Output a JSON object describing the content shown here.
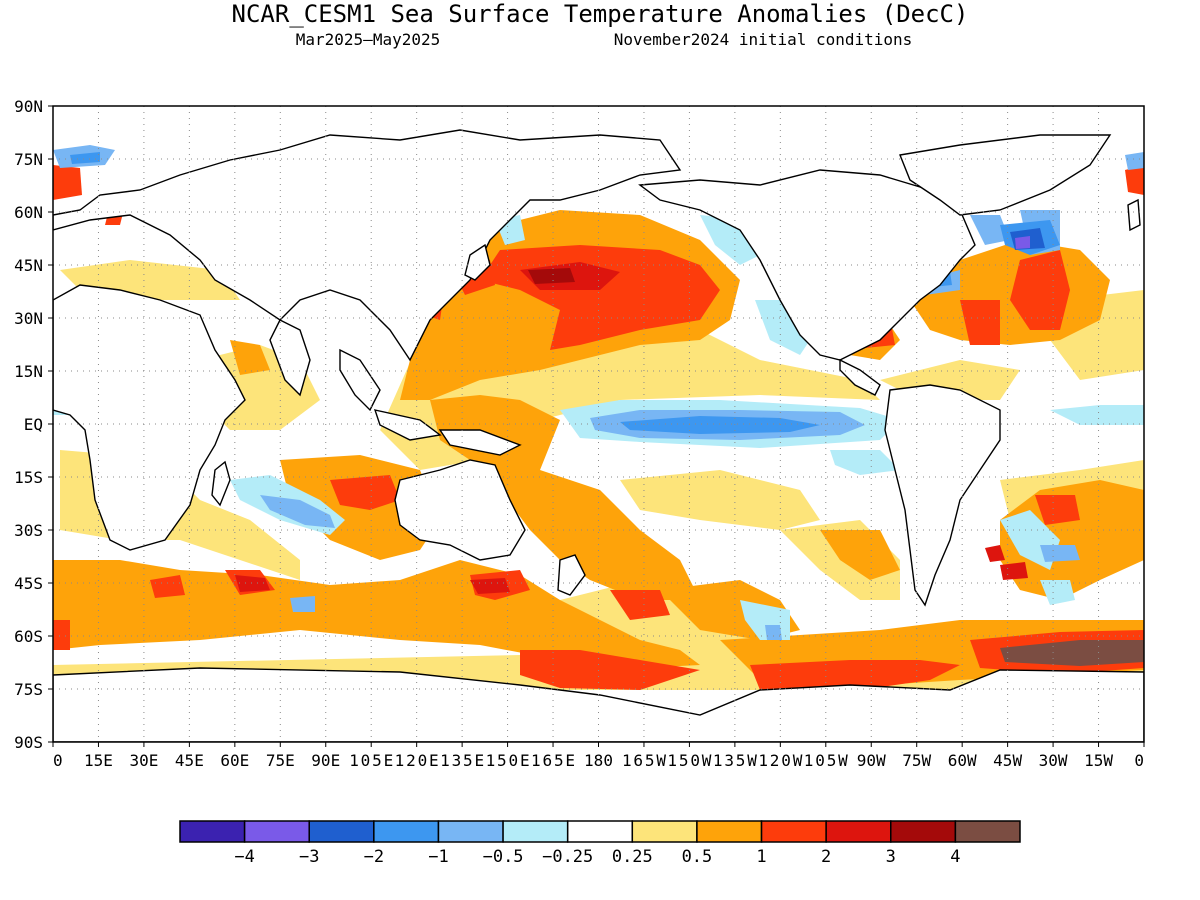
{
  "title": "NCAR_CESM1 Sea Surface Temperature Anomalies (DecC)",
  "subtitle_left": "Mar2025–May2025",
  "subtitle_right": "November2024 initial conditions",
  "axes": {
    "lat_labels": [
      "90N",
      "75N",
      "60N",
      "45N",
      "30N",
      "15N",
      "EQ",
      "15S",
      "30S",
      "45S",
      "60S",
      "75S",
      "90S"
    ],
    "lon_labels": [
      "0",
      "15E",
      "30E",
      "45E",
      "60E",
      "75E",
      "90E",
      "105E",
      "120E",
      "135E",
      "150E",
      "165E",
      "180",
      "165W",
      "150W",
      "135W",
      "120W",
      "105W",
      "90W",
      "75W",
      "60W",
      "45W",
      "30W",
      "15W",
      "0"
    ]
  },
  "colorbar": {
    "colors": [
      "#3b22b0",
      "#7a5ae8",
      "#1f5fcf",
      "#3d97f0",
      "#78b6f4",
      "#b4ecf8",
      "#ffffff",
      "#fde47a",
      "#fea30a",
      "#fd3c0c",
      "#dd150e",
      "#a40a0a",
      "#7b4d42"
    ],
    "labels": [
      "−4",
      "−3",
      "−2",
      "−1",
      "−0.5",
      "−0.25",
      "0.25",
      "0.5",
      "1",
      "2",
      "3",
      "4"
    ]
  }
}
